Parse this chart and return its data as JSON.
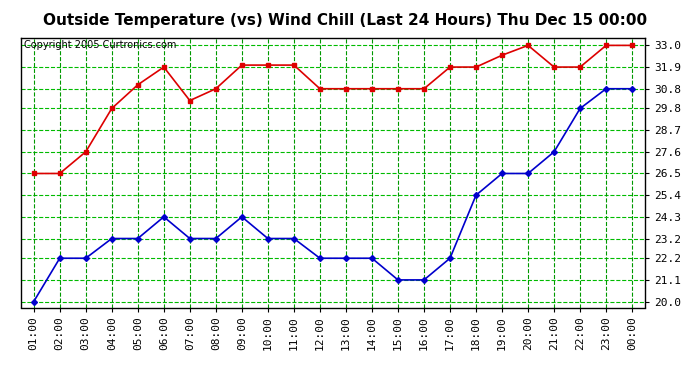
{
  "title": "Outside Temperature (vs) Wind Chill (Last 24 Hours) Thu Dec 15 00:00",
  "copyright": "Copyright 2005 Curtronics.com",
  "x_labels": [
    "01:00",
    "02:00",
    "03:00",
    "04:00",
    "05:00",
    "06:00",
    "07:00",
    "08:00",
    "09:00",
    "10:00",
    "11:00",
    "12:00",
    "13:00",
    "14:00",
    "15:00",
    "16:00",
    "17:00",
    "18:00",
    "19:00",
    "20:00",
    "21:00",
    "22:00",
    "23:00",
    "00:00"
  ],
  "y_ticks": [
    20.0,
    21.1,
    22.2,
    23.2,
    24.3,
    25.4,
    26.5,
    27.6,
    28.7,
    29.8,
    30.8,
    31.9,
    33.0
  ],
  "ylim": [
    19.7,
    33.4
  ],
  "red_data": [
    26.5,
    26.5,
    27.6,
    29.8,
    31.0,
    31.9,
    30.2,
    30.8,
    32.0,
    32.0,
    32.0,
    30.8,
    30.8,
    30.8,
    30.8,
    30.8,
    31.9,
    31.9,
    32.5,
    33.0,
    31.9,
    31.9,
    33.0,
    33.0
  ],
  "blue_data": [
    20.0,
    22.2,
    22.2,
    23.2,
    23.2,
    24.3,
    23.2,
    23.2,
    24.3,
    23.2,
    23.2,
    22.2,
    22.2,
    22.2,
    21.1,
    21.1,
    22.2,
    25.4,
    26.5,
    26.5,
    27.6,
    29.8,
    30.8,
    30.8
  ],
  "bg_color": "#ffffff",
  "plot_bg_color": "#ffffff",
  "grid_color_h": "#00bb00",
  "grid_color_v": "#009900",
  "red_color": "#dd0000",
  "blue_color": "#0000cc",
  "title_fontsize": 11,
  "copyright_fontsize": 7,
  "axis_label_fontsize": 8
}
